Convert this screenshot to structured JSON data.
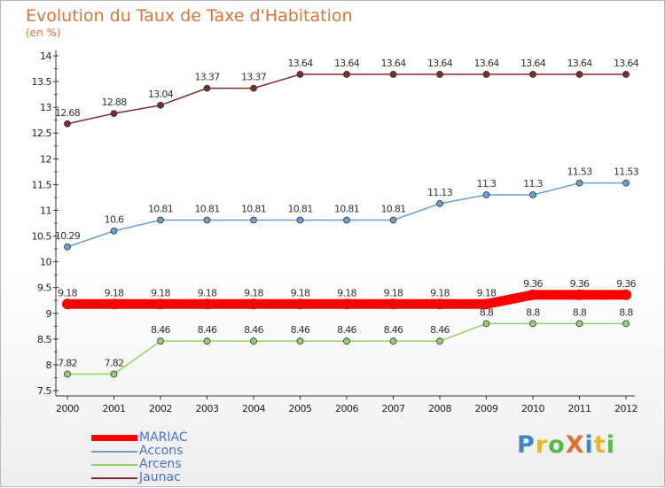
{
  "header": {
    "title": "Evolution du Taux de Taxe d'Habitation",
    "subtitle": "(en %)"
  },
  "logo": {
    "text": "ProXiti",
    "colors": [
      "#3f86c9",
      "#e8b52c",
      "#58b94a",
      "#e07030",
      "#3f86c9",
      "#e8b52c",
      "#58b94a"
    ]
  },
  "chart_data": {
    "type": "line",
    "x": [
      2000,
      2001,
      2002,
      2003,
      2004,
      2005,
      2006,
      2007,
      2008,
      2009,
      2010,
      2011,
      2012
    ],
    "ylim": [
      7.5,
      14
    ],
    "yticks": [
      7.5,
      8,
      8.5,
      9,
      9.5,
      10,
      10.5,
      11,
      11.5,
      12,
      12.5,
      13,
      13.5,
      14
    ],
    "legend_position": "bottom-left",
    "grid": false,
    "series": [
      {
        "name": "MARIAC",
        "color": "#ff0000",
        "values": [
          9.18,
          9.18,
          9.18,
          9.18,
          9.18,
          9.18,
          9.18,
          9.18,
          9.18,
          9.18,
          9.36,
          9.36,
          9.36
        ]
      },
      {
        "name": "Accons",
        "color": "#6a9fcf",
        "values": [
          10.29,
          10.6,
          10.81,
          10.81,
          10.81,
          10.81,
          10.81,
          10.81,
          11.13,
          11.3,
          11.3,
          11.53,
          11.53
        ]
      },
      {
        "name": "Arcens",
        "color": "#93d26e",
        "values": [
          7.82,
          7.82,
          8.46,
          8.46,
          8.46,
          8.46,
          8.46,
          8.46,
          8.46,
          8.8,
          8.8,
          8.8,
          8.8
        ]
      },
      {
        "name": "Jaunac",
        "color": "#7a2f2f",
        "values": [
          12.68,
          12.88,
          13.04,
          13.37,
          13.37,
          13.64,
          13.64,
          13.64,
          13.64,
          13.64,
          13.64,
          13.64,
          13.64
        ]
      }
    ]
  }
}
